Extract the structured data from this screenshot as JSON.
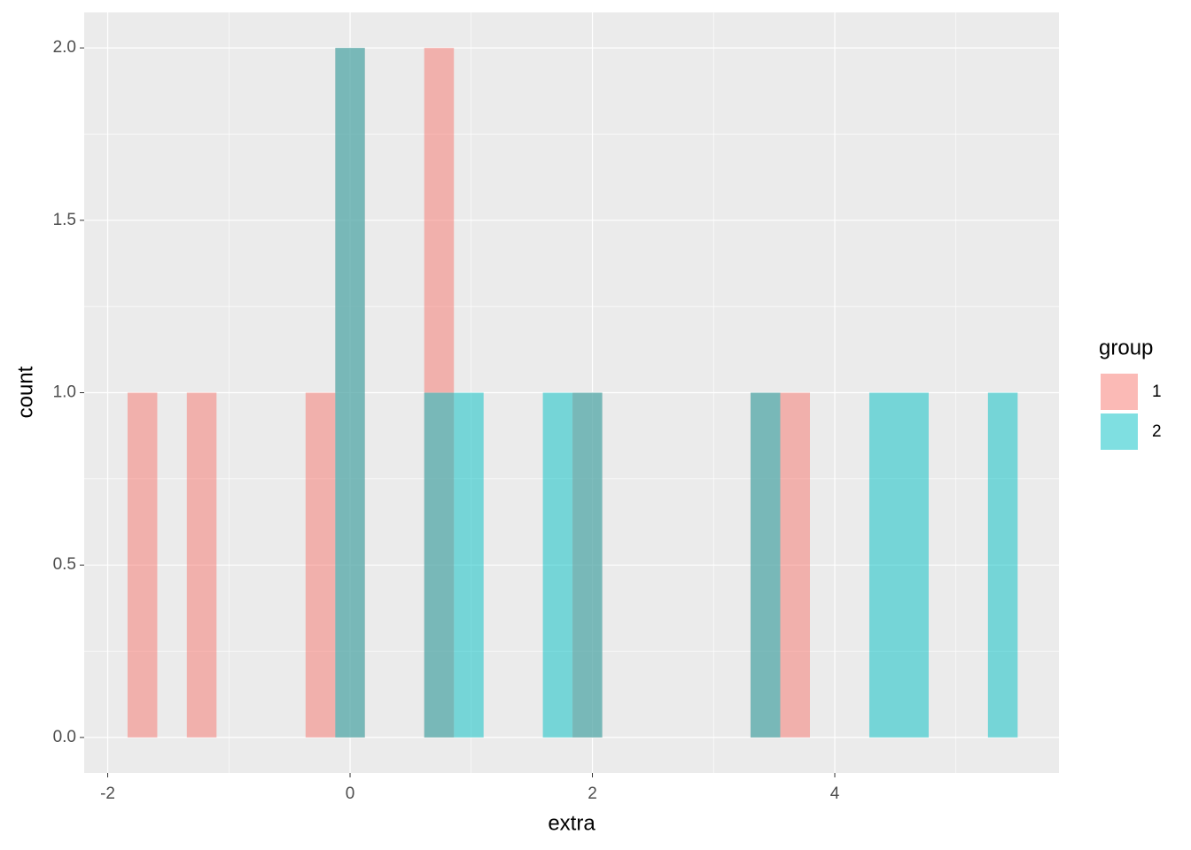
{
  "chart_data": {
    "type": "histogram",
    "x_label": "extra",
    "y_label": "count",
    "legend_title": "group",
    "legend_position": "right",
    "alpha": 0.5,
    "grid": true,
    "bins": [
      -1.836,
      -1.591,
      -1.347,
      -1.102,
      -0.857,
      -0.612,
      -0.367,
      -0.122,
      0.122,
      0.367,
      0.612,
      0.857,
      1.102,
      1.346,
      1.591,
      1.836,
      2.081,
      2.326,
      2.571,
      2.816,
      3.06,
      3.305,
      3.55,
      3.795,
      4.04,
      4.285,
      4.53,
      4.775,
      5.019,
      5.264,
      5.509
    ],
    "series": [
      {
        "name": "1",
        "color": "#F8766D",
        "values": [
          1,
          0,
          1,
          0,
          0,
          0,
          1,
          2,
          0,
          0,
          2,
          0,
          0,
          0,
          0,
          1,
          0,
          0,
          0,
          0,
          0,
          1,
          1,
          0,
          0,
          0,
          0,
          0,
          0,
          0
        ]
      },
      {
        "name": "2",
        "color": "#00BFC4",
        "values": [
          0,
          0,
          0,
          0,
          0,
          0,
          0,
          2,
          0,
          0,
          1,
          1,
          0,
          0,
          1,
          1,
          0,
          0,
          0,
          0,
          0,
          1,
          0,
          0,
          0,
          1,
          1,
          0,
          0,
          1
        ]
      }
    ],
    "xlim": [
      -2.194,
      5.85
    ],
    "ylim": [
      -0.103,
      2.103
    ],
    "xticks": [
      -2,
      0,
      2,
      4
    ],
    "yticks": [
      {
        "value": 0,
        "label": "0.0"
      },
      {
        "value": 0.5,
        "label": "0.5"
      },
      {
        "value": 1,
        "label": "1.0"
      },
      {
        "value": 1.5,
        "label": "1.5"
      },
      {
        "value": 2,
        "label": "2.0"
      }
    ]
  }
}
